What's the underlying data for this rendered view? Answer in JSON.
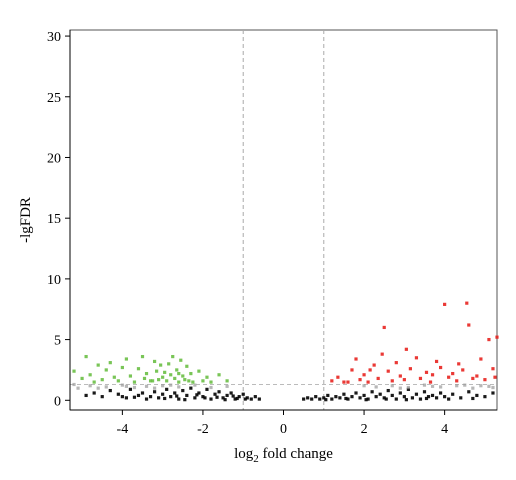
{
  "chart_data": {
    "type": "scatter",
    "title": "",
    "xlabel": {
      "prefix": "log",
      "sub": "2",
      "suffix": " fold change"
    },
    "ylabel": "-lgFDR",
    "xlim": [
      -5.3,
      5.3
    ],
    "ylim": [
      -0.8,
      30.5
    ],
    "xticks": [
      -4,
      -2,
      0,
      2,
      4
    ],
    "yticks": [
      0,
      5,
      10,
      15,
      20,
      25,
      30
    ],
    "vlines": [
      -1,
      1
    ],
    "hline": 1.3,
    "grid": false,
    "series": [
      {
        "color": "#000000",
        "points": [
          [
            -4.9,
            0.4
          ],
          [
            -4.7,
            0.6
          ],
          [
            -4.5,
            0.3
          ],
          [
            -4.3,
            0.8
          ],
          [
            -4.1,
            0.5
          ],
          [
            -3.9,
            0.2
          ],
          [
            -3.8,
            0.9
          ],
          [
            -3.6,
            0.4
          ],
          [
            -3.5,
            0.6
          ],
          [
            -3.3,
            0.3
          ],
          [
            -3.2,
            0.7
          ],
          [
            -3.1,
            0.2
          ],
          [
            -3.0,
            0.5
          ],
          [
            -2.9,
            0.9
          ],
          [
            -2.8,
            0.3
          ],
          [
            -2.7,
            0.6
          ],
          [
            -2.6,
            0.1
          ],
          [
            -2.5,
            0.8
          ],
          [
            -2.4,
            0.4
          ],
          [
            -2.3,
            1.0
          ],
          [
            -2.2,
            0.2
          ],
          [
            -2.1,
            0.6
          ],
          [
            -2.0,
            0.3
          ],
          [
            -1.9,
            0.9
          ],
          [
            -1.8,
            0.1
          ],
          [
            -1.7,
            0.5
          ],
          [
            -1.6,
            0.7
          ],
          [
            -1.5,
            0.2
          ],
          [
            -1.4,
            0.4
          ],
          [
            -1.3,
            0.6
          ],
          [
            -1.2,
            0.1
          ],
          [
            -1.1,
            0.3
          ],
          [
            -1.0,
            0.5
          ],
          [
            -0.9,
            0.2
          ],
          [
            -0.8,
            0.1
          ],
          [
            -0.7,
            0.3
          ],
          [
            -0.6,
            0.1
          ],
          [
            -3.4,
            0.1
          ],
          [
            -2.95,
            0.15
          ],
          [
            -2.45,
            0.05
          ],
          [
            -1.95,
            0.2
          ],
          [
            -1.45,
            0.05
          ],
          [
            -1.15,
            0.15
          ],
          [
            -3.7,
            0.25
          ],
          [
            -4.0,
            0.3
          ],
          [
            -2.65,
            0.35
          ],
          [
            -2.15,
            0.45
          ],
          [
            -1.65,
            0.25
          ],
          [
            -1.25,
            0.35
          ],
          [
            -0.95,
            0.1
          ],
          [
            0.5,
            0.1
          ],
          [
            0.6,
            0.2
          ],
          [
            0.7,
            0.1
          ],
          [
            0.8,
            0.3
          ],
          [
            0.9,
            0.1
          ],
          [
            1.0,
            0.2
          ],
          [
            1.1,
            0.4
          ],
          [
            1.2,
            0.1
          ],
          [
            1.3,
            0.3
          ],
          [
            1.4,
            0.2
          ],
          [
            1.5,
            0.5
          ],
          [
            1.6,
            0.1
          ],
          [
            1.7,
            0.3
          ],
          [
            1.8,
            0.6
          ],
          [
            1.9,
            0.2
          ],
          [
            2.0,
            0.4
          ],
          [
            2.1,
            0.1
          ],
          [
            2.2,
            0.7
          ],
          [
            2.3,
            0.3
          ],
          [
            2.4,
            0.5
          ],
          [
            2.5,
            0.2
          ],
          [
            2.6,
            0.8
          ],
          [
            2.7,
            0.4
          ],
          [
            2.8,
            0.1
          ],
          [
            2.9,
            0.6
          ],
          [
            3.0,
            0.3
          ],
          [
            3.1,
            0.9
          ],
          [
            3.2,
            0.2
          ],
          [
            3.3,
            0.5
          ],
          [
            3.4,
            0.1
          ],
          [
            3.5,
            0.7
          ],
          [
            3.6,
            0.3
          ],
          [
            3.7,
            0.4
          ],
          [
            3.8,
            0.2
          ],
          [
            3.9,
            0.6
          ],
          [
            4.0,
            0.3
          ],
          [
            4.2,
            0.5
          ],
          [
            4.4,
            0.2
          ],
          [
            4.6,
            0.7
          ],
          [
            4.8,
            0.4
          ],
          [
            5.0,
            0.3
          ],
          [
            5.2,
            0.6
          ],
          [
            1.05,
            0.05
          ],
          [
            1.55,
            0.15
          ],
          [
            2.05,
            0.05
          ],
          [
            2.55,
            0.1
          ],
          [
            3.05,
            0.05
          ],
          [
            3.55,
            0.15
          ],
          [
            4.1,
            0.1
          ],
          [
            4.7,
            0.15
          ]
        ]
      },
      {
        "color": "#999999",
        "points": [
          [
            -5.1,
            1.0
          ],
          [
            -4.8,
            1.2
          ],
          [
            -4.4,
            1.1
          ],
          [
            -4.0,
            1.25
          ],
          [
            -3.7,
            1.05
          ],
          [
            -3.4,
            1.15
          ],
          [
            -3.0,
            1.2
          ],
          [
            -2.6,
            1.1
          ],
          [
            -2.2,
            1.25
          ],
          [
            -1.8,
            1.05
          ],
          [
            -1.4,
            1.15
          ],
          [
            -5.2,
            1.3
          ],
          [
            -4.6,
            1.0
          ],
          [
            -3.9,
            1.15
          ],
          [
            -3.2,
            1.0
          ],
          [
            -2.8,
            1.25
          ],
          [
            2.3,
            1.1
          ],
          [
            2.7,
            1.2
          ],
          [
            3.1,
            1.05
          ],
          [
            3.5,
            1.25
          ],
          [
            3.9,
            1.1
          ],
          [
            4.3,
            1.2
          ],
          [
            4.7,
            1.0
          ],
          [
            5.1,
            1.15
          ],
          [
            2.0,
            1.2
          ],
          [
            2.9,
            1.0
          ],
          [
            3.7,
            1.15
          ],
          [
            4.5,
            1.25
          ],
          [
            5.2,
            1.05
          ],
          [
            4.9,
            1.2
          ]
        ]
      },
      {
        "color": "#6abf45",
        "points": [
          [
            -5.2,
            2.4
          ],
          [
            -5.0,
            1.8
          ],
          [
            -4.9,
            3.6
          ],
          [
            -4.8,
            2.1
          ],
          [
            -4.7,
            1.5
          ],
          [
            -4.6,
            2.9
          ],
          [
            -4.5,
            1.7
          ],
          [
            -4.4,
            2.5
          ],
          [
            -4.3,
            3.1
          ],
          [
            -4.2,
            1.9
          ],
          [
            -4.1,
            1.6
          ],
          [
            -4.0,
            2.7
          ],
          [
            -3.9,
            3.4
          ],
          [
            -3.8,
            2.0
          ],
          [
            -3.7,
            1.5
          ],
          [
            -3.6,
            2.6
          ],
          [
            -3.5,
            3.6
          ],
          [
            -3.45,
            1.8
          ],
          [
            -3.4,
            2.2
          ],
          [
            -3.3,
            1.6
          ],
          [
            -3.2,
            3.2
          ],
          [
            -3.15,
            2.4
          ],
          [
            -3.1,
            1.7
          ],
          [
            -3.05,
            2.9
          ],
          [
            -3.0,
            1.9
          ],
          [
            -2.95,
            2.3
          ],
          [
            -2.9,
            1.6
          ],
          [
            -2.85,
            3.0
          ],
          [
            -2.8,
            2.1
          ],
          [
            -2.75,
            3.6
          ],
          [
            -2.7,
            1.8
          ],
          [
            -2.65,
            2.5
          ],
          [
            -2.6,
            1.5
          ],
          [
            -2.55,
            3.3
          ],
          [
            -2.5,
            2.0
          ],
          [
            -2.45,
            1.7
          ],
          [
            -2.4,
            2.8
          ],
          [
            -2.35,
            1.6
          ],
          [
            -2.3,
            2.2
          ],
          [
            -2.25,
            1.5
          ],
          [
            -2.1,
            2.4
          ],
          [
            -2.0,
            1.6
          ],
          [
            -1.9,
            1.9
          ],
          [
            -1.8,
            1.5
          ],
          [
            -1.6,
            2.1
          ],
          [
            -1.4,
            1.6
          ],
          [
            -3.25,
            1.6
          ],
          [
            -2.6,
            2.2
          ]
        ]
      },
      {
        "color": "#e8231f",
        "points": [
          [
            1.2,
            1.6
          ],
          [
            1.35,
            1.9
          ],
          [
            1.5,
            1.5
          ],
          [
            1.7,
            2.5
          ],
          [
            1.8,
            3.4
          ],
          [
            1.9,
            1.7
          ],
          [
            2.0,
            2.1
          ],
          [
            2.1,
            1.5
          ],
          [
            2.25,
            2.9
          ],
          [
            2.35,
            1.8
          ],
          [
            2.45,
            3.8
          ],
          [
            2.5,
            6.0
          ],
          [
            2.6,
            2.4
          ],
          [
            2.7,
            1.6
          ],
          [
            2.8,
            3.1
          ],
          [
            2.9,
            2.0
          ],
          [
            3.0,
            1.7
          ],
          [
            3.05,
            4.2
          ],
          [
            3.15,
            2.6
          ],
          [
            3.3,
            3.5
          ],
          [
            3.4,
            1.8
          ],
          [
            3.55,
            2.3
          ],
          [
            3.65,
            1.5
          ],
          [
            3.8,
            3.2
          ],
          [
            3.9,
            2.7
          ],
          [
            4.0,
            7.9
          ],
          [
            4.1,
            1.9
          ],
          [
            4.2,
            2.2
          ],
          [
            4.3,
            1.6
          ],
          [
            4.45,
            2.5
          ],
          [
            4.55,
            8.0
          ],
          [
            4.6,
            6.2
          ],
          [
            4.7,
            1.8
          ],
          [
            4.8,
            2.0
          ],
          [
            4.9,
            3.4
          ],
          [
            5.0,
            1.7
          ],
          [
            5.1,
            5.0
          ],
          [
            5.2,
            2.6
          ],
          [
            5.25,
            1.9
          ],
          [
            5.3,
            5.2
          ],
          [
            1.6,
            1.5
          ],
          [
            3.7,
            2.1
          ],
          [
            4.35,
            3.0
          ],
          [
            2.15,
            2.5
          ]
        ]
      }
    ]
  }
}
